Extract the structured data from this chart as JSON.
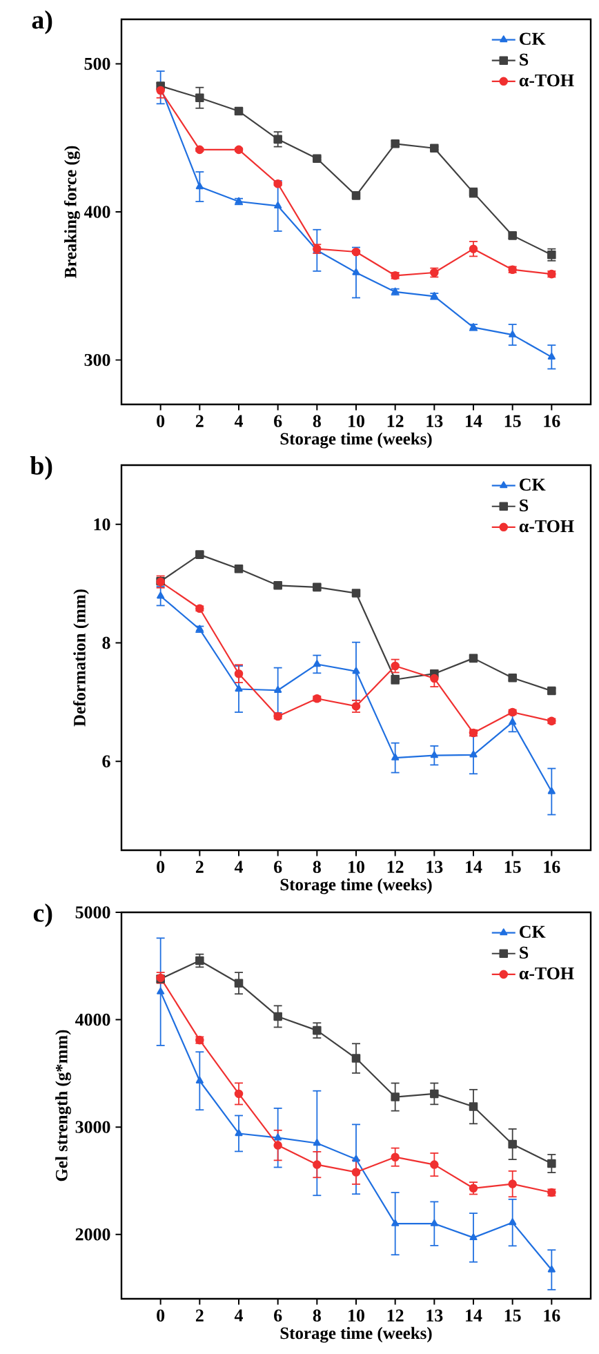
{
  "chart_data": [
    {
      "type": "line",
      "title": "a)",
      "xlabel": "Storage time (weeks)",
      "ylabel": "Breaking force (g)",
      "categories": [
        "0",
        "2",
        "4",
        "6",
        "8",
        "10",
        "12",
        "13",
        "14",
        "15",
        "16"
      ],
      "ylim": [
        270,
        530
      ],
      "yticks": [
        300,
        400,
        500
      ],
      "legend": "top right",
      "series": [
        {
          "name": "CK",
          "color": "#1f6fe0",
          "marker": "triangle",
          "values": [
            484,
            417,
            407,
            404,
            374,
            359,
            346,
            343,
            322,
            317,
            302
          ],
          "errors": [
            11,
            10,
            2,
            17,
            14,
            17,
            2,
            2,
            2,
            7,
            8
          ]
        },
        {
          "name": "S",
          "color": "#404040",
          "marker": "square",
          "values": [
            485,
            477,
            468,
            449,
            436,
            411,
            446,
            443,
            413,
            384,
            371
          ],
          "errors": [
            2,
            7,
            1,
            5,
            1,
            2,
            2,
            1,
            3,
            2,
            4
          ]
        },
        {
          "name": "α-TOH",
          "color": "#f03030",
          "marker": "circle",
          "values": [
            482,
            442,
            442,
            419,
            375,
            373,
            357,
            359,
            375,
            361,
            358
          ],
          "errors": [
            5,
            1,
            1,
            1,
            3,
            1,
            2,
            3,
            5,
            2,
            2
          ]
        }
      ]
    },
    {
      "type": "line",
      "title": "b)",
      "xlabel": "Storage time (weeks)",
      "ylabel": "Deformation (mm)",
      "categories": [
        "0",
        "2",
        "4",
        "6",
        "8",
        "10",
        "12",
        "13",
        "14",
        "15",
        "16"
      ],
      "ylim": [
        4.5,
        11
      ],
      "yticks": [
        6,
        8,
        10
      ],
      "legend": "top right",
      "series": [
        {
          "name": "CK",
          "color": "#1f6fe0",
          "marker": "triangle",
          "values": [
            8.79,
            8.23,
            7.22,
            7.2,
            7.64,
            7.52,
            6.06,
            6.1,
            6.11,
            6.66,
            5.49
          ],
          "errors": [
            0.16,
            0.05,
            0.39,
            0.38,
            0.15,
            0.49,
            0.25,
            0.16,
            0.32,
            0.16,
            0.39
          ]
        },
        {
          "name": "S",
          "color": "#404040",
          "marker": "square",
          "values": [
            9.04,
            9.49,
            9.25,
            8.97,
            8.94,
            8.84,
            7.38,
            7.48,
            7.74,
            7.41,
            7.19
          ],
          "errors": [
            0.04,
            0.04,
            0.04,
            0.04,
            0.04,
            0.04,
            0.07,
            0.04,
            0.04,
            0.04,
            0.04
          ]
        },
        {
          "name": "α-TOH",
          "color": "#f03030",
          "marker": "circle",
          "values": [
            9.03,
            8.58,
            7.48,
            6.76,
            7.06,
            6.93,
            7.61,
            7.4,
            6.48,
            6.83,
            6.68
          ],
          "errors": [
            0.1,
            0.04,
            0.15,
            0.04,
            0.04,
            0.1,
            0.11,
            0.14,
            0.05,
            0.04,
            0.04
          ]
        }
      ]
    },
    {
      "type": "line",
      "title": "c)",
      "xlabel": "Storage time (weeks)",
      "ylabel": "Gel strength (g*mm)",
      "categories": [
        "0",
        "2",
        "4",
        "6",
        "8",
        "10",
        "12",
        "13",
        "14",
        "15",
        "16"
      ],
      "ylim": [
        1400,
        5000
      ],
      "yticks": [
        2000,
        3000,
        4000,
        5000
      ],
      "legend": "top right",
      "series": [
        {
          "name": "CK",
          "color": "#1f6fe0",
          "marker": "triangle",
          "values": [
            4260,
            3430,
            2940,
            2900,
            2850,
            2700,
            2100,
            2100,
            1970,
            2110,
            1670
          ],
          "errors": [
            500,
            270,
            167,
            275,
            487,
            324,
            290,
            204,
            227,
            217,
            185
          ]
        },
        {
          "name": "S",
          "color": "#404040",
          "marker": "square",
          "values": [
            4380,
            4550,
            4340,
            4030,
            3900,
            3640,
            3280,
            3310,
            3190,
            2840,
            2660
          ],
          "errors": [
            30,
            60,
            100,
            100,
            70,
            137,
            129,
            99,
            159,
            142,
            84
          ]
        },
        {
          "name": "α-TOH",
          "color": "#f03030",
          "marker": "circle",
          "values": [
            4390,
            3810,
            3310,
            2830,
            2650,
            2580,
            2720,
            2650,
            2430,
            2470,
            2390
          ],
          "errors": [
            50,
            30,
            100,
            140,
            120,
            112,
            84,
            107,
            56,
            120,
            30
          ]
        }
      ]
    }
  ]
}
